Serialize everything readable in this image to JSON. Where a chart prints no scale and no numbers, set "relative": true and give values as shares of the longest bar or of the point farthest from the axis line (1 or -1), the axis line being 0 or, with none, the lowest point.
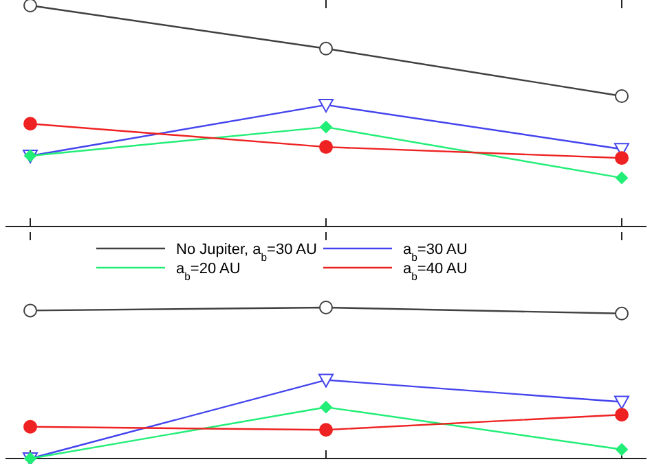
{
  "chart_data": [
    {
      "type": "line",
      "relative": true,
      "categories": [
        null,
        null,
        null
      ],
      "legend": false,
      "series": [
        {
          "color": "#404040",
          "marker": "circle",
          "values": [
            1,
            0.805,
            0.59
          ]
        },
        {
          "color": "#4444ee",
          "marker": "triangle",
          "values": [
            0.32,
            0.55,
            0.35
          ]
        },
        {
          "color": "#22ee77",
          "marker": "diamond",
          "values": [
            0.32,
            0.45,
            0.22
          ]
        },
        {
          "color": "#ee2222",
          "marker": "circle",
          "values": [
            0.465,
            0.36,
            0.31
          ]
        }
      ]
    },
    {
      "type": "line",
      "relative": true,
      "categories": [
        null,
        null,
        null
      ],
      "legend": "top",
      "series": [
        {
          "name": "No Jupiter, a$_{b}$=30 AU",
          "color": "#404040",
          "marker": "circle",
          "values": [
            0.98,
            1,
            0.96
          ]
        },
        {
          "name": "a$_{b}$=30 AU",
          "color": "#4444ee",
          "marker": "triangle",
          "values": [
            0,
            0.52,
            0.375
          ]
        },
        {
          "name": "a$_{b}$=20 AU",
          "color": "#22ee77",
          "marker": "diamond",
          "values": [
            0,
            0.34,
            0.06
          ]
        },
        {
          "name": "a$_{b}$=40 AU",
          "color": "#ee2222",
          "marker": "circle",
          "values": [
            0.21,
            0.19,
            0.29
          ]
        }
      ]
    }
  ]
}
